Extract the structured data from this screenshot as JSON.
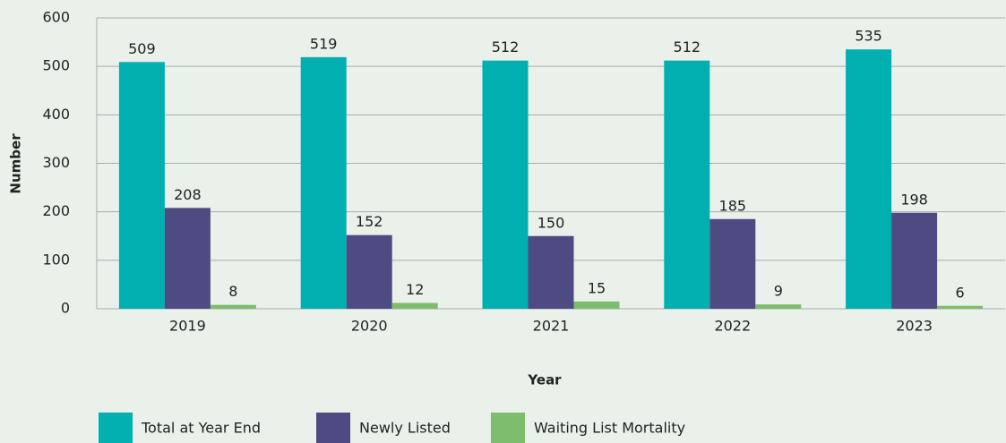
{
  "chart_data": {
    "type": "bar",
    "categories": [
      "2019",
      "2020",
      "2021",
      "2022",
      "2023"
    ],
    "series": [
      {
        "name": "Total at Year End",
        "color": "#00afb0",
        "values": [
          509,
          519,
          512,
          512,
          535
        ]
      },
      {
        "name": "Newly Listed",
        "color": "#4e4b82",
        "values": [
          208,
          152,
          150,
          185,
          198
        ]
      },
      {
        "name": "Waiting List Mortality",
        "color": "#7dbd6d",
        "values": [
          8,
          12,
          15,
          9,
          6
        ]
      }
    ],
    "x_label": "Year",
    "y_label": "Number",
    "ylim": [
      0,
      600
    ],
    "yticks": [
      0,
      100,
      200,
      300,
      400,
      500,
      600
    ],
    "grid": true,
    "legend": "bottom"
  }
}
